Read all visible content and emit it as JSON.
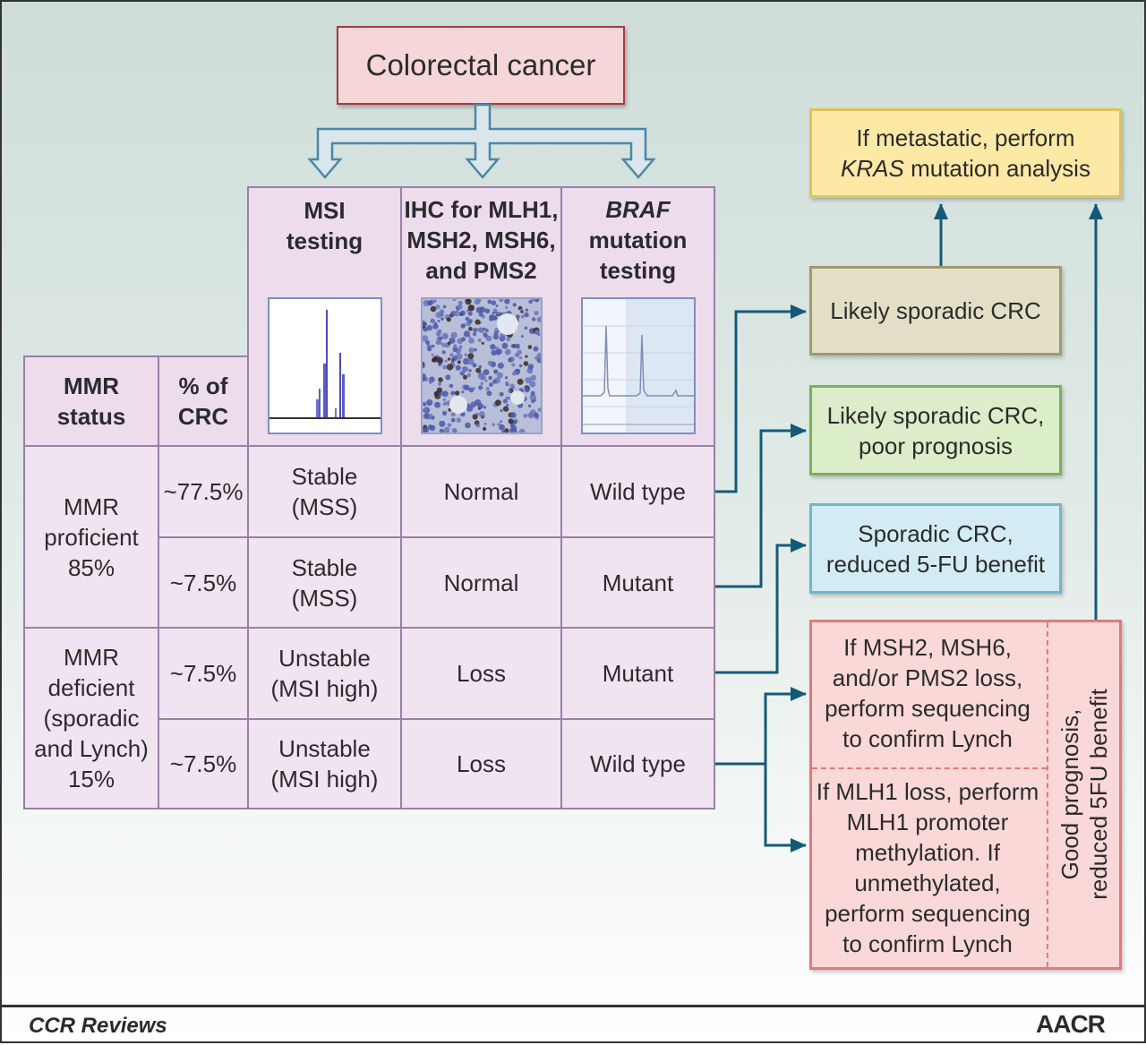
{
  "top": {
    "title": "Colorectal cancer"
  },
  "table": {
    "headers": {
      "mmr_status": "MMR\nstatus",
      "pct_crc": "% of\nCRC",
      "msi": "MSI\ntesting",
      "ihc": "IHC for MLH1,\nMSH2, MSH6,\nand PMS2",
      "braf_1": "BRAF",
      "braf_2": "mutation\ntesting"
    },
    "groups": [
      {
        "label": "MMR\nproficient\n85%"
      },
      {
        "label": "MMR\ndeficient\n(sporadic\nand Lynch)\n15%"
      }
    ],
    "rows": [
      {
        "pct": "~77.5%",
        "msi": "Stable\n(MSS)",
        "ihc": "Normal",
        "braf": "Wild type"
      },
      {
        "pct": "~7.5%",
        "msi": "Stable\n(MSS)",
        "ihc": "Normal",
        "braf": "Mutant"
      },
      {
        "pct": "~7.5%",
        "msi": "Unstable\n(MSI high)",
        "ihc": "Loss",
        "braf": "Mutant"
      },
      {
        "pct": "~7.5%",
        "msi": "Unstable\n(MSI high)",
        "ihc": "Loss",
        "braf": "Wild type"
      }
    ]
  },
  "outcomes": {
    "kras_1": "If metastatic, perform",
    "kras_italic": "KRAS",
    "kras_2": " mutation analysis",
    "likely_sporadic": "Likely sporadic CRC",
    "likely_sporadic_poor": "Likely sporadic CRC,\npoor prognosis",
    "sporadic_5fu": "Sporadic CRC,\nreduced 5-FU benefit",
    "lynch_seq": "If MSH2, MSH6,\nand/or PMS2 loss,\nperform sequencing\nto confirm Lynch",
    "mlh1": "If MLH1 loss, perform\nMLH1 promoter\nmethylation. If\nunmethylated,\nperform sequencing\nto confirm Lynch",
    "good_prognosis": "Good prognosis,\nreduced 5FU benefit"
  },
  "footer": {
    "journal": "CCR Reviews",
    "publisher": "AACR"
  },
  "colors": {
    "arrow": "#145a78",
    "top_box": "#f6d6d8",
    "top_border": "#a83a42",
    "kras_box": "#fde9a6",
    "kras_border": "#e0c25a",
    "sporadic_box": "#e3dfc7",
    "sporadic_border": "#9f9a72",
    "poor_box": "#dcedc9",
    "poor_border": "#7fae5c",
    "fu_box": "#d3ecf3",
    "fu_border": "#6db7cf",
    "lynch_box": "#fbd8d8",
    "lynch_border": "#e07a7a"
  }
}
